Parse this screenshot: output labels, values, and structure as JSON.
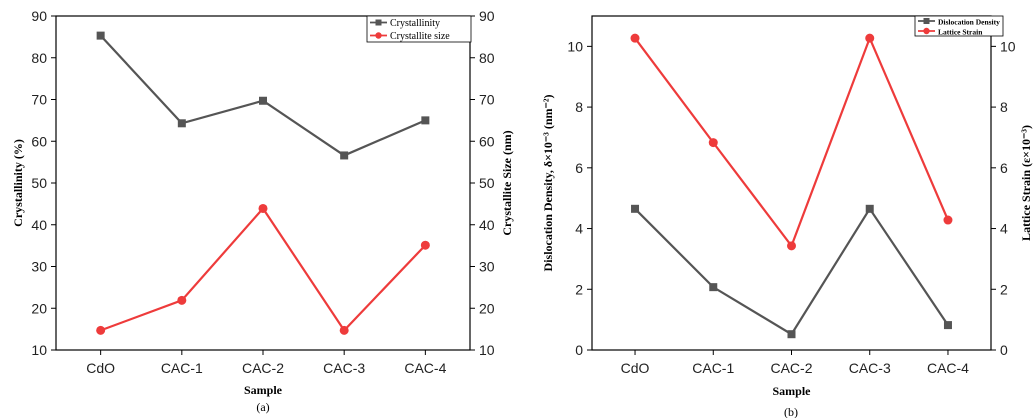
{
  "chart_data": [
    {
      "type": "line",
      "categories": [
        "CdO",
        "CAC-1",
        "CAC-2",
        "CAC-3",
        "CAC-4"
      ],
      "xlabel": "Sample",
      "ylabel_left": "Crystallinity (%)",
      "ylabel_right": "Crystallite Size (nm)",
      "ylim": [
        10,
        90
      ],
      "yticks": [
        "10",
        "20",
        "30",
        "40",
        "50",
        "60",
        "70",
        "80",
        "90"
      ],
      "caption": "(a)",
      "legend_position": "top-right",
      "series": [
        {
          "name": "Crystallinity",
          "axis": "left",
          "color": "#555555",
          "marker": "square",
          "values": [
            85.3,
            64.3,
            69.7,
            56.6,
            65.0
          ]
        },
        {
          "name": "Crystallite size",
          "axis": "right",
          "color": "#ee3b3b",
          "marker": "circle",
          "values": [
            14.7,
            21.9,
            43.9,
            14.7,
            35.1
          ]
        }
      ]
    },
    {
      "type": "line",
      "categories": [
        "CdO",
        "CAC-1",
        "CAC-2",
        "CAC-3",
        "CAC-4"
      ],
      "xlabel": "Sample",
      "ylabel_left": "Dislocation Density, δ×10⁻³ (nm⁻²)",
      "ylabel_right": "Lattice Strain (ε×10⁻³)",
      "ylim": [
        0,
        11
      ],
      "yticks": [
        "0",
        "2",
        "4",
        "6",
        "8",
        "10"
      ],
      "caption": "(b)",
      "legend_position": "top-right",
      "series": [
        {
          "name": "Dislocation Density",
          "axis": "left",
          "color": "#555555",
          "marker": "square",
          "values": [
            4.65,
            2.07,
            0.52,
            4.65,
            0.82
          ]
        },
        {
          "name": "Lattice Strain",
          "axis": "right",
          "color": "#ee3b3b",
          "marker": "circle",
          "values": [
            10.27,
            6.83,
            3.43,
            10.27,
            4.28
          ]
        }
      ]
    }
  ]
}
